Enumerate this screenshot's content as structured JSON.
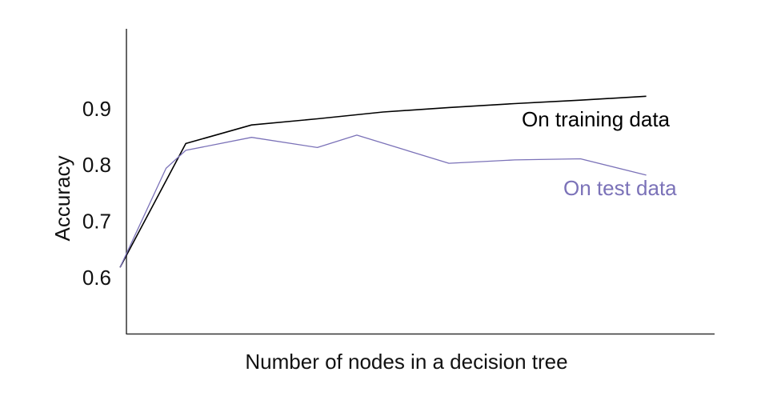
{
  "chart_data": {
    "type": "line",
    "title": "",
    "xlabel": "Number of nodes in a decision tree",
    "ylabel": "Accuracy",
    "ylim": [
      0.5,
      1.04
    ],
    "yticks": [
      0.6,
      0.7,
      0.8,
      0.9
    ],
    "ytick_labels": [
      "0.6",
      "0.7",
      "0.8",
      "0.9"
    ],
    "x_ticks_shown": false,
    "grid": false,
    "legend": "inline labels at right end of each series",
    "series": [
      {
        "name": "On training data",
        "color": "#000000",
        "x": [
          0,
          1,
          2,
          3,
          4,
          5,
          6,
          7,
          8
        ],
        "values": [
          0.618,
          0.838,
          0.871,
          0.882,
          0.894,
          0.902,
          0.909,
          0.915,
          0.922
        ]
      },
      {
        "name": "On test data",
        "color": "#7b72b8",
        "x": [
          0,
          0.7,
          1,
          2,
          3,
          3.6,
          5,
          6,
          7,
          8
        ],
        "values": [
          0.618,
          0.794,
          0.826,
          0.849,
          0.831,
          0.853,
          0.803,
          0.809,
          0.811,
          0.782
        ]
      }
    ]
  }
}
